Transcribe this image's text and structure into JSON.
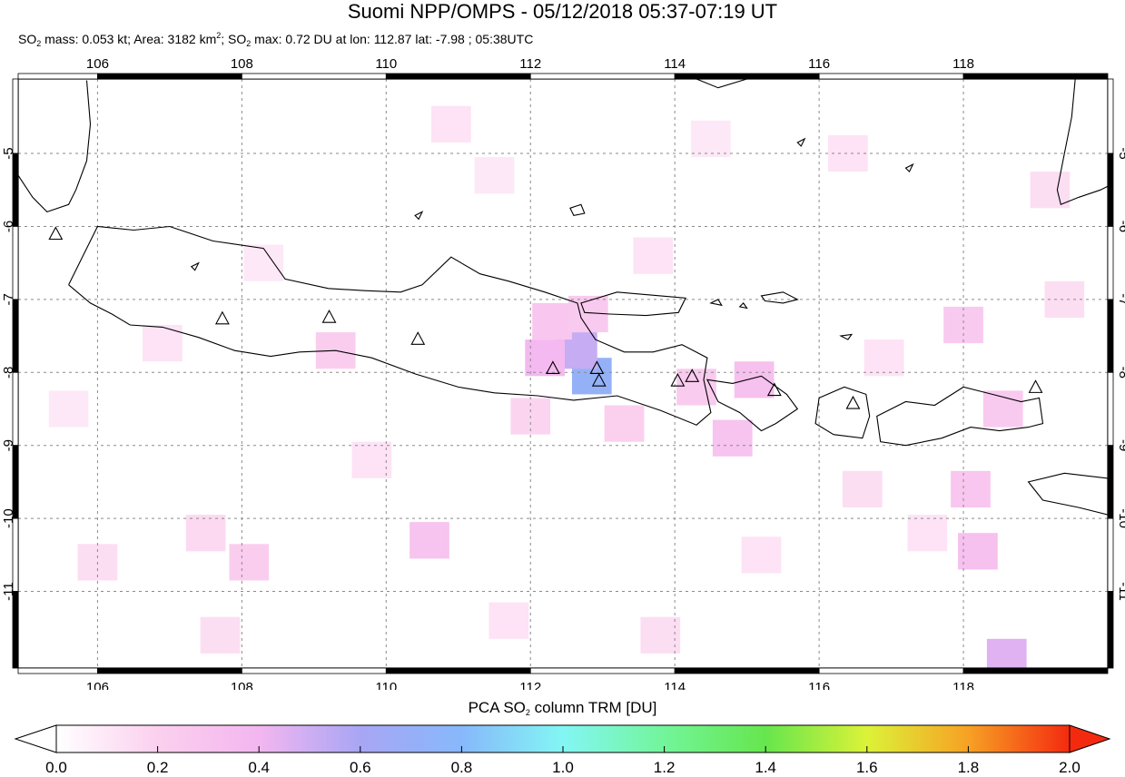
{
  "title": "Suomi NPP/OMPS - 05/12/2018 05:37-07:19 UT",
  "subtitle": {
    "p1": "SO",
    "s1": "2",
    "p2": " mass: 0.053 kt; Area: 3182 km",
    "s2": "2",
    "p3": "; SO",
    "s3": "2",
    "p4": " max: 0.72 DU at lon: 112.87 lat: -7.98 ; 05:38UTC"
  },
  "map": {
    "lon_range": [
      104.9,
      120.0
    ],
    "lat_range": [
      -12.05,
      -3.98
    ],
    "lon_ticks": [
      {
        "value": 106,
        "label": "106"
      },
      {
        "value": 108,
        "label": "108"
      },
      {
        "value": 110,
        "label": "110"
      },
      {
        "value": 112,
        "label": "112"
      },
      {
        "value": 114,
        "label": "114"
      },
      {
        "value": 116,
        "label": "116"
      },
      {
        "value": 118,
        "label": "118"
      }
    ],
    "lat_ticks": [
      {
        "value": -5,
        "label": "-5"
      },
      {
        "value": -6,
        "label": "-6"
      },
      {
        "value": -7,
        "label": "-7"
      },
      {
        "value": -8,
        "label": "-8"
      },
      {
        "value": -9,
        "label": "-9"
      },
      {
        "value": -10,
        "label": "-10"
      },
      {
        "value": -11,
        "label": "-11"
      }
    ],
    "grid": true,
    "volcanoes": [
      {
        "lon": 105.42,
        "lat": -6.1
      },
      {
        "lon": 107.73,
        "lat": -7.26
      },
      {
        "lon": 109.21,
        "lat": -7.24
      },
      {
        "lon": 110.44,
        "lat": -7.54
      },
      {
        "lon": 112.31,
        "lat": -7.94
      },
      {
        "lon": 112.92,
        "lat": -7.94
      },
      {
        "lon": 112.95,
        "lat": -8.11
      },
      {
        "lon": 114.04,
        "lat": -8.11
      },
      {
        "lon": 114.24,
        "lat": -8.05
      },
      {
        "lon": 115.38,
        "lat": -8.24
      },
      {
        "lon": 116.47,
        "lat": -8.42
      },
      {
        "lon": 119.0,
        "lat": -8.2
      }
    ],
    "so2_cells": [
      {
        "lon": 112.85,
        "lat": -8.05,
        "du": 0.72
      },
      {
        "lon": 112.65,
        "lat": -7.7,
        "du": 0.52
      },
      {
        "lon": 112.2,
        "lat": -7.8,
        "du": 0.38
      },
      {
        "lon": 112.3,
        "lat": -7.3,
        "du": 0.28
      },
      {
        "lon": 112.8,
        "lat": -7.2,
        "du": 0.25
      },
      {
        "lon": 115.1,
        "lat": -8.1,
        "du": 0.32
      },
      {
        "lon": 114.8,
        "lat": -8.9,
        "du": 0.3
      },
      {
        "lon": 114.3,
        "lat": -8.2,
        "du": 0.24
      },
      {
        "lon": 110.6,
        "lat": -10.3,
        "du": 0.3
      },
      {
        "lon": 109.3,
        "lat": -7.7,
        "du": 0.22
      },
      {
        "lon": 118.6,
        "lat": -11.9,
        "du": 0.45
      },
      {
        "lon": 118.2,
        "lat": -10.45,
        "du": 0.32
      },
      {
        "lon": 118.1,
        "lat": -9.6,
        "du": 0.28
      },
      {
        "lon": 118.55,
        "lat": -8.5,
        "du": 0.25
      },
      {
        "lon": 118.0,
        "lat": -7.35,
        "du": 0.25
      },
      {
        "lon": 112.0,
        "lat": -8.6,
        "du": 0.18
      },
      {
        "lon": 113.3,
        "lat": -8.7,
        "du": 0.2
      },
      {
        "lon": 108.1,
        "lat": -10.6,
        "du": 0.22
      },
      {
        "lon": 107.5,
        "lat": -10.2,
        "du": 0.16
      },
      {
        "lon": 106.0,
        "lat": -10.6,
        "du": 0.14
      },
      {
        "lon": 110.9,
        "lat": -4.6,
        "du": 0.12
      },
      {
        "lon": 111.5,
        "lat": -5.3,
        "du": 0.1
      },
      {
        "lon": 114.5,
        "lat": -4.8,
        "du": 0.1
      },
      {
        "lon": 116.4,
        "lat": -5.0,
        "du": 0.12
      },
      {
        "lon": 119.2,
        "lat": -5.5,
        "du": 0.14
      },
      {
        "lon": 116.6,
        "lat": -9.6,
        "du": 0.14
      },
      {
        "lon": 117.5,
        "lat": -10.2,
        "du": 0.12
      },
      {
        "lon": 111.7,
        "lat": -11.4,
        "du": 0.12
      },
      {
        "lon": 113.8,
        "lat": -11.6,
        "du": 0.14
      },
      {
        "lon": 115.2,
        "lat": -10.5,
        "du": 0.12
      },
      {
        "lon": 106.9,
        "lat": -7.6,
        "du": 0.12
      },
      {
        "lon": 108.3,
        "lat": -6.5,
        "du": 0.1
      },
      {
        "lon": 105.6,
        "lat": -8.5,
        "du": 0.1
      },
      {
        "lon": 109.8,
        "lat": -9.2,
        "du": 0.12
      },
      {
        "lon": 107.7,
        "lat": -11.6,
        "du": 0.14
      },
      {
        "lon": 119.4,
        "lat": -7.0,
        "du": 0.14
      },
      {
        "lon": 116.9,
        "lat": -7.8,
        "du": 0.12
      },
      {
        "lon": 113.7,
        "lat": -6.4,
        "du": 0.12
      }
    ]
  },
  "colorbar": {
    "title_p1": "PCA SO",
    "title_s1": "2",
    "title_p2": " column TRM [DU]",
    "range": [
      0.0,
      2.0
    ],
    "stops": [
      {
        "v": 0.0,
        "color": "#ffffff"
      },
      {
        "v": 0.2,
        "color": "#fbd0ee"
      },
      {
        "v": 0.4,
        "color": "#f3b6f0"
      },
      {
        "v": 0.6,
        "color": "#a8a6f4"
      },
      {
        "v": 0.8,
        "color": "#87b8fb"
      },
      {
        "v": 1.0,
        "color": "#83f6f4"
      },
      {
        "v": 1.2,
        "color": "#72f59a"
      },
      {
        "v": 1.4,
        "color": "#66e64d"
      },
      {
        "v": 1.6,
        "color": "#dcf238"
      },
      {
        "v": 1.8,
        "color": "#f7a124"
      },
      {
        "v": 2.0,
        "color": "#f42a10"
      }
    ],
    "ticks": [
      "0.0",
      "0.2",
      "0.4",
      "0.6",
      "0.8",
      "1.0",
      "1.2",
      "1.4",
      "1.6",
      "1.8",
      "2.0"
    ]
  }
}
